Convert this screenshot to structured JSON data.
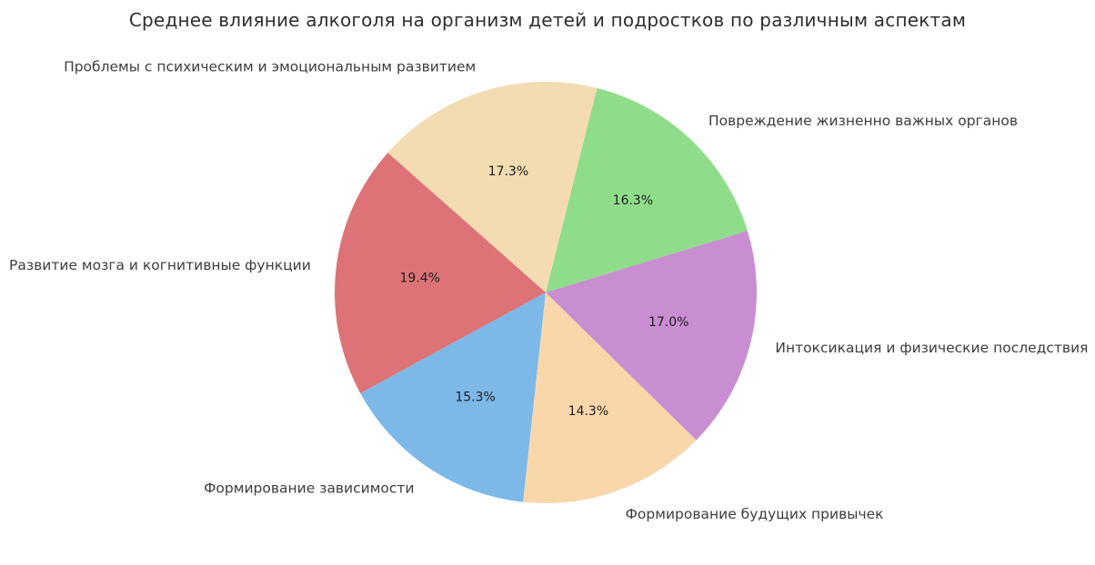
{
  "page": {
    "background_color": "#ffffff"
  },
  "chart_data": {
    "type": "pie",
    "title": "Среднее влияние алкоголя на организм детей и подростков по различным аспектам",
    "legend_position": "none",
    "grid": false,
    "start_angle_deg": 17,
    "direction": "counterclockwise",
    "pct_label_distance": 0.6,
    "outer_label_distance": 1.12,
    "slices": [
      {
        "label": "Повреждение жизненно важных органов",
        "value_pct": 16.3,
        "pct_label": "16.3%",
        "color": "#8fdd8a"
      },
      {
        "label": "Проблемы с психическим и эмоциональным развитием",
        "value_pct": 17.3,
        "pct_label": "17.3%",
        "color": "#f3dcb2"
      },
      {
        "label": "Развитие мозга и когнитивные функции",
        "value_pct": 19.4,
        "pct_label": "19.4%",
        "color": "#dd7376"
      },
      {
        "label": "Формирование зависимости",
        "value_pct": 15.3,
        "pct_label": "15.3%",
        "color": "#7cb8e8"
      },
      {
        "label": "Формирование будущих привычек",
        "value_pct": 14.3,
        "pct_label": "14.3%",
        "color": "#f9d7ab"
      },
      {
        "label": "Интоксикация и физические последствия",
        "value_pct": 17.0,
        "pct_label": "17.0%",
        "color": "#c98ed1"
      }
    ],
    "text_colors": {
      "title": "#2e2e2e",
      "outer_labels": "#3d3d3d",
      "pct_labels": "#1f1f1f"
    }
  }
}
